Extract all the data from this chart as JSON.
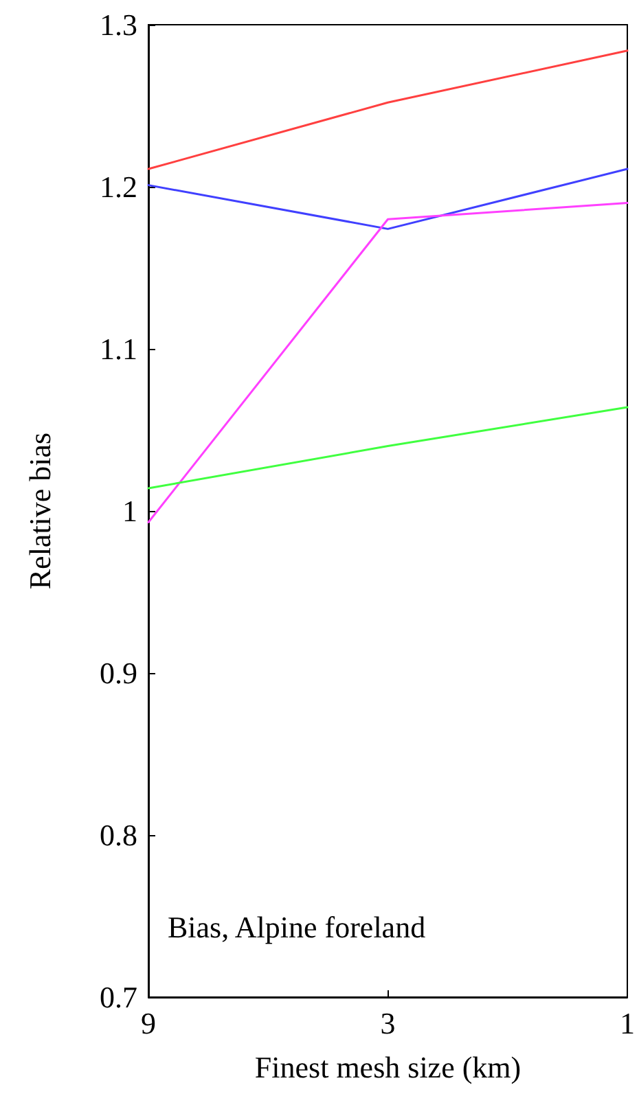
{
  "chart_data": {
    "type": "line",
    "xlabel": "Finest mesh size (km)",
    "ylabel": "Relative bias",
    "categories": [
      "9",
      "3",
      "1"
    ],
    "series": [
      {
        "color": "#ff4040",
        "values": [
          1.211,
          1.252,
          1.284
        ]
      },
      {
        "color": "#4040ff",
        "values": [
          1.201,
          1.174,
          1.211
        ]
      },
      {
        "color": "#ff40ff",
        "values": [
          0.993,
          1.18,
          1.19
        ]
      },
      {
        "color": "#40ff40",
        "values": [
          1.014,
          1.04,
          1.064
        ]
      }
    ],
    "ylim": [
      0.7,
      1.3
    ],
    "yticks": [
      0.7,
      0.8,
      0.9,
      1,
      1.1,
      1.2,
      1.3
    ],
    "grid": false,
    "marker": "none",
    "line_style": "solid",
    "annotations": [
      "Bias, Alpine foreland"
    ]
  }
}
